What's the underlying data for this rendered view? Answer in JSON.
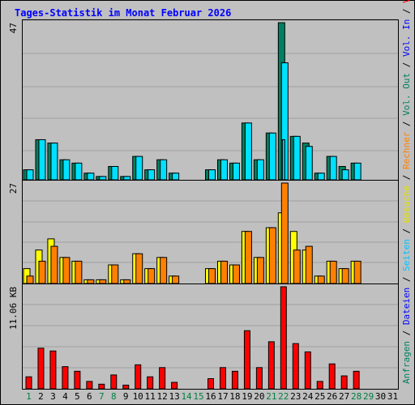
{
  "title": "Tages-Statistik im Monat Februar 2026",
  "colors": {
    "background": "#C0C0C0",
    "plot_bg": "#C0C0C0",
    "grid": "#A0A0A0",
    "anfragen": "#008060",
    "dateien": "#00E0FF",
    "seiten": "#00D0F0",
    "besuche": "#FFFF00",
    "rechner": "#FF8000",
    "volumen": "#FF0000",
    "weekend_label": "#008040",
    "weekday_label": "#000000"
  },
  "legend": {
    "top": [
      {
        "text": "Anfragen",
        "color": "#008060"
      },
      {
        "text": "Dateien",
        "color": "#0000FF"
      },
      {
        "text": "Seiten",
        "color": "#00C0FF"
      },
      {
        "text": "Besuche",
        "color": "#E0E000"
      },
      {
        "text": "Rechner",
        "color": "#FF8000"
      },
      {
        "text": "Vol. Out",
        "color": "#008060"
      },
      {
        "text": "Vol. In",
        "color": "#0000FF"
      },
      {
        "text": "Volumen",
        "color": "#FF0000"
      }
    ],
    "separator": "/"
  },
  "chart_data": [
    {
      "type": "bar",
      "panel": "top",
      "max_label": "47",
      "ylim": [
        0,
        47
      ],
      "categories": [
        "1",
        "2",
        "3",
        "4",
        "5",
        "6",
        "7",
        "8",
        "9",
        "10",
        "11",
        "12",
        "13",
        "14",
        "15",
        "16",
        "17",
        "18",
        "19",
        "20",
        "21",
        "22",
        "23",
        "24",
        "25",
        "26",
        "27",
        "28",
        "29",
        "30",
        "31"
      ],
      "series": [
        {
          "name": "Anfragen",
          "values": [
            3,
            12,
            11,
            6,
            5,
            2,
            1,
            4,
            1,
            7,
            3,
            6,
            2,
            0,
            0,
            3,
            6,
            5,
            17,
            6,
            14,
            47,
            13,
            11,
            2,
            7,
            4,
            5,
            0,
            0,
            0
          ]
        },
        {
          "name": "Dateien",
          "values": [
            3,
            12,
            11,
            6,
            5,
            2,
            1,
            4,
            1,
            7,
            3,
            6,
            2,
            0,
            0,
            3,
            6,
            5,
            17,
            6,
            14,
            35,
            13,
            10,
            2,
            7,
            3,
            5,
            0,
            0,
            0
          ]
        },
        {
          "name": "Seiten",
          "values": [
            0,
            0,
            0,
            0,
            0,
            0,
            0,
            0,
            0,
            0,
            0,
            0,
            0,
            0,
            0,
            0,
            0,
            0,
            0,
            0,
            0,
            12,
            0,
            0,
            0,
            0,
            0,
            0,
            0,
            0,
            0
          ]
        }
      ]
    },
    {
      "type": "bar",
      "panel": "middle",
      "max_label": "27",
      "ylim": [
        0,
        27
      ],
      "categories": [
        "1",
        "2",
        "3",
        "4",
        "5",
        "6",
        "7",
        "8",
        "9",
        "10",
        "11",
        "12",
        "13",
        "14",
        "15",
        "16",
        "17",
        "18",
        "19",
        "20",
        "21",
        "22",
        "23",
        "24",
        "25",
        "26",
        "27",
        "28",
        "29",
        "30",
        "31"
      ],
      "series": [
        {
          "name": "Besuche",
          "values": [
            4,
            9,
            12,
            7,
            6,
            1,
            1,
            5,
            1,
            8,
            4,
            7,
            2,
            0,
            0,
            4,
            6,
            5,
            14,
            7,
            15,
            19,
            14,
            9,
            2,
            6,
            4,
            6,
            0,
            0,
            0
          ]
        },
        {
          "name": "Rechner",
          "values": [
            2,
            6,
            10,
            7,
            6,
            1,
            1,
            5,
            1,
            8,
            4,
            7,
            2,
            0,
            0,
            4,
            6,
            5,
            14,
            7,
            15,
            27,
            9,
            10,
            2,
            6,
            4,
            6,
            0,
            0,
            0
          ]
        }
      ]
    },
    {
      "type": "bar",
      "panel": "bottom",
      "max_label": "11.06 KB",
      "ylim": [
        0,
        11.06
      ],
      "categories": [
        "1",
        "2",
        "3",
        "4",
        "5",
        "6",
        "7",
        "8",
        "9",
        "10",
        "11",
        "12",
        "13",
        "14",
        "15",
        "16",
        "17",
        "18",
        "19",
        "20",
        "21",
        "22",
        "23",
        "24",
        "25",
        "26",
        "27",
        "28",
        "29",
        "30",
        "31"
      ],
      "series": [
        {
          "name": "Volumen",
          "values": [
            1.3,
            4.4,
            4.1,
            2.4,
            1.9,
            0.8,
            0.5,
            1.5,
            0.4,
            2.6,
            1.3,
            2.3,
            0.7,
            0,
            0,
            1.1,
            2.3,
            1.9,
            6.3,
            2.3,
            5.1,
            11.06,
            4.9,
            4.0,
            0.8,
            2.7,
            1.4,
            1.9,
            0,
            0,
            0
          ]
        }
      ]
    }
  ],
  "weekend_days": [
    "1",
    "7",
    "8",
    "14",
    "15",
    "21",
    "22",
    "28",
    "29"
  ]
}
